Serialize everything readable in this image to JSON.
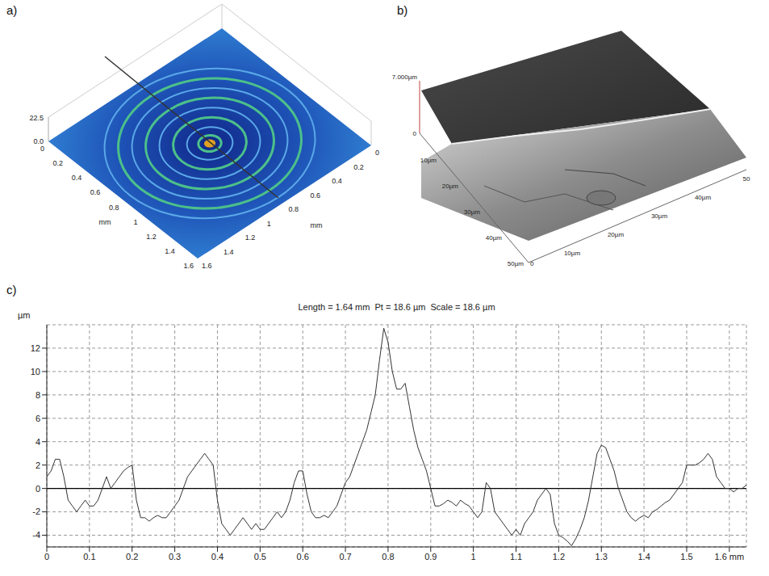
{
  "panel_a": {
    "label": "a)",
    "z_top": "22.5",
    "z_bottom": "0.0",
    "ticks": [
      "0",
      "0.2",
      "0.4",
      "0.6",
      "0.8",
      "1",
      "1.2",
      "1.4",
      "1.6"
    ],
    "unit": "mm"
  },
  "panel_b": {
    "label": "b)",
    "z_top": "7.000µm",
    "z_bottom": "0",
    "left_ticks": [
      "10µm",
      "20µm",
      "30µm",
      "40µm",
      "50µm"
    ],
    "right_ticks": [
      "10µm",
      "20µm",
      "30µm",
      "40µm",
      "50"
    ],
    "origin": "0"
  },
  "chart_data": {
    "type": "line",
    "panel_label": "c)",
    "title": "Length = 1.64 mm  Pt = 18.6 µm  Scale = 18.6 µm",
    "y_label": "µm",
    "x": [
      0,
      0.01,
      0.02,
      0.03,
      0.04,
      0.05,
      0.06,
      0.07,
      0.08,
      0.09,
      0.1,
      0.11,
      0.12,
      0.13,
      0.14,
      0.15,
      0.16,
      0.17,
      0.18,
      0.19,
      0.2,
      0.21,
      0.22,
      0.23,
      0.24,
      0.25,
      0.26,
      0.27,
      0.28,
      0.29,
      0.3,
      0.31,
      0.32,
      0.33,
      0.34,
      0.35,
      0.36,
      0.37,
      0.38,
      0.39,
      0.4,
      0.41,
      0.42,
      0.43,
      0.44,
      0.45,
      0.46,
      0.47,
      0.48,
      0.49,
      0.5,
      0.51,
      0.52,
      0.53,
      0.54,
      0.55,
      0.56,
      0.57,
      0.58,
      0.59,
      0.6,
      0.61,
      0.62,
      0.63,
      0.64,
      0.65,
      0.66,
      0.67,
      0.68,
      0.69,
      0.7,
      0.71,
      0.72,
      0.73,
      0.74,
      0.75,
      0.76,
      0.77,
      0.78,
      0.79,
      0.8,
      0.81,
      0.82,
      0.83,
      0.84,
      0.85,
      0.86,
      0.87,
      0.88,
      0.89,
      0.9,
      0.91,
      0.92,
      0.93,
      0.94,
      0.95,
      0.96,
      0.97,
      0.98,
      0.99,
      1,
      1.01,
      1.02,
      1.03,
      1.04,
      1.05,
      1.06,
      1.07,
      1.08,
      1.09,
      1.1,
      1.11,
      1.12,
      1.13,
      1.14,
      1.15,
      1.16,
      1.17,
      1.18,
      1.19,
      1.2,
      1.21,
      1.22,
      1.23,
      1.24,
      1.25,
      1.26,
      1.27,
      1.28,
      1.29,
      1.3,
      1.31,
      1.32,
      1.33,
      1.34,
      1.35,
      1.36,
      1.37,
      1.38,
      1.39,
      1.4,
      1.41,
      1.42,
      1.43,
      1.44,
      1.45,
      1.46,
      1.47,
      1.48,
      1.49,
      1.5,
      1.51,
      1.52,
      1.53,
      1.54,
      1.55,
      1.56,
      1.57,
      1.58,
      1.59,
      1.6,
      1.61,
      1.62,
      1.63,
      1.64
    ],
    "values": [
      1,
      1.5,
      2.5,
      2.5,
      1,
      -1,
      -1.5,
      -2,
      -1.5,
      -1,
      -1.5,
      -1.5,
      -1,
      0,
      1,
      0,
      0.5,
      1,
      1.5,
      1.8,
      2,
      -1,
      -2.5,
      -2.5,
      -2.8,
      -2.5,
      -2.3,
      -2.5,
      -2.5,
      -2,
      -1.5,
      -1,
      0,
      1,
      1.5,
      2,
      2.5,
      3,
      2.5,
      2,
      -1,
      -3,
      -3.5,
      -4,
      -3.5,
      -3,
      -2.5,
      -3,
      -3.5,
      -3,
      -3.5,
      -3.5,
      -3,
      -2.5,
      -2,
      -2.5,
      -2,
      -1,
      0.5,
      1.5,
      1.5,
      -0.5,
      -2,
      -2.5,
      -2.5,
      -2.3,
      -2.5,
      -2,
      -1.5,
      -0.5,
      0.5,
      1,
      2,
      3,
      4,
      5,
      6.5,
      8,
      11,
      13.7,
      12.5,
      10,
      8.5,
      8.5,
      9,
      7,
      5,
      3.5,
      2.5,
      1.5,
      0,
      -1.5,
      -1.5,
      -1.3,
      -1,
      -1.2,
      -1.5,
      -1,
      -1.3,
      -1.5,
      -2,
      -2.5,
      -2,
      0.5,
      0,
      -2,
      -2.5,
      -3,
      -3.5,
      -4,
      -3.5,
      -4,
      -3,
      -2.5,
      -2,
      -1,
      -0.5,
      0,
      -0.5,
      -3,
      -4,
      -4.2,
      -4.5,
      -4.9,
      -4.3,
      -3.5,
      -2.5,
      -1,
      1,
      3,
      3.7,
      3.5,
      2.5,
      1.5,
      0,
      -1,
      -2,
      -2.5,
      -2.8,
      -2.5,
      -2.3,
      -2.5,
      -2,
      -1.8,
      -1.5,
      -1.2,
      -1,
      -0.5,
      0,
      0.5,
      2,
      2,
      2,
      2.2,
      2.5,
      3,
      2.5,
      1,
      0.5,
      0,
      0,
      -0.3,
      0,
      0,
      0.3
    ],
    "color": "#333333",
    "line_style": "solid",
    "xlim": [
      0,
      1.64
    ],
    "ylim": [
      -5,
      14
    ],
    "xticks": [
      0,
      0.1,
      0.2,
      0.3,
      0.4,
      0.5,
      0.6,
      0.7,
      0.8,
      0.9,
      1,
      1.1,
      1.2,
      1.3,
      1.4,
      1.5,
      {
        "value": 1.6,
        "label": "1.6 mm"
      }
    ],
    "yticks": [
      -4,
      -2,
      0,
      2,
      4,
      6,
      8,
      10,
      12
    ],
    "grid": true,
    "reference_line": 0
  }
}
